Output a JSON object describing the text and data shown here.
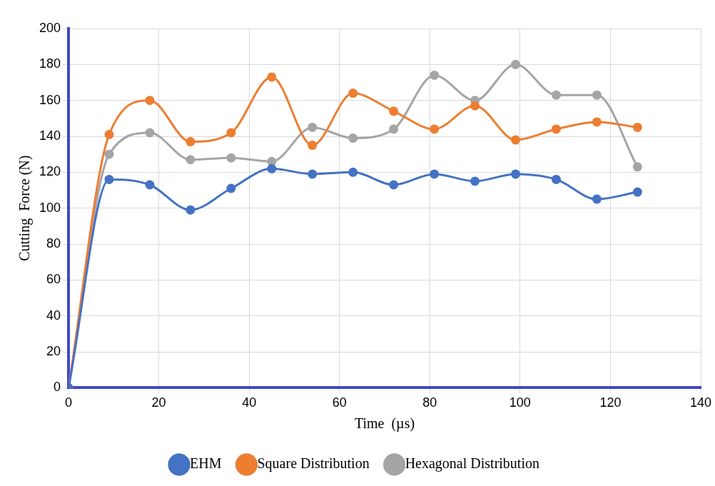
{
  "chart_data": {
    "type": "line",
    "xlabel": "Time  (µs)",
    "ylabel": "Cutting  Force (N)",
    "x": [
      0,
      9,
      18,
      27,
      36,
      45,
      54,
      63,
      72,
      81,
      90,
      99,
      108,
      117,
      126
    ],
    "series": [
      {
        "name": "EHM",
        "color": "#4472c4",
        "values": [
          0,
          116,
          113,
          99,
          111,
          122,
          119,
          120,
          113,
          119,
          115,
          119,
          116,
          105,
          109
        ]
      },
      {
        "name": "Square Distribution",
        "color": "#ed7d31",
        "values": [
          0,
          141,
          160,
          137,
          142,
          173,
          135,
          164,
          154,
          144,
          157,
          138,
          144,
          148,
          145
        ]
      },
      {
        "name": "Hexagonal Distribution",
        "color": "#a5a5a5",
        "values": [
          0,
          130,
          142,
          127,
          128,
          126,
          145,
          139,
          144,
          174,
          160,
          180,
          163,
          163,
          123
        ]
      }
    ],
    "xlim": [
      0,
      140
    ],
    "xticks": [
      0,
      20,
      40,
      60,
      80,
      100,
      120,
      140
    ],
    "ylim": [
      0,
      200
    ],
    "yticks": [
      0,
      20,
      40,
      60,
      80,
      100,
      120,
      140,
      160,
      180,
      200
    ],
    "grid": true,
    "legend": "bottom",
    "marker": "circle",
    "line_style": "solid"
  }
}
